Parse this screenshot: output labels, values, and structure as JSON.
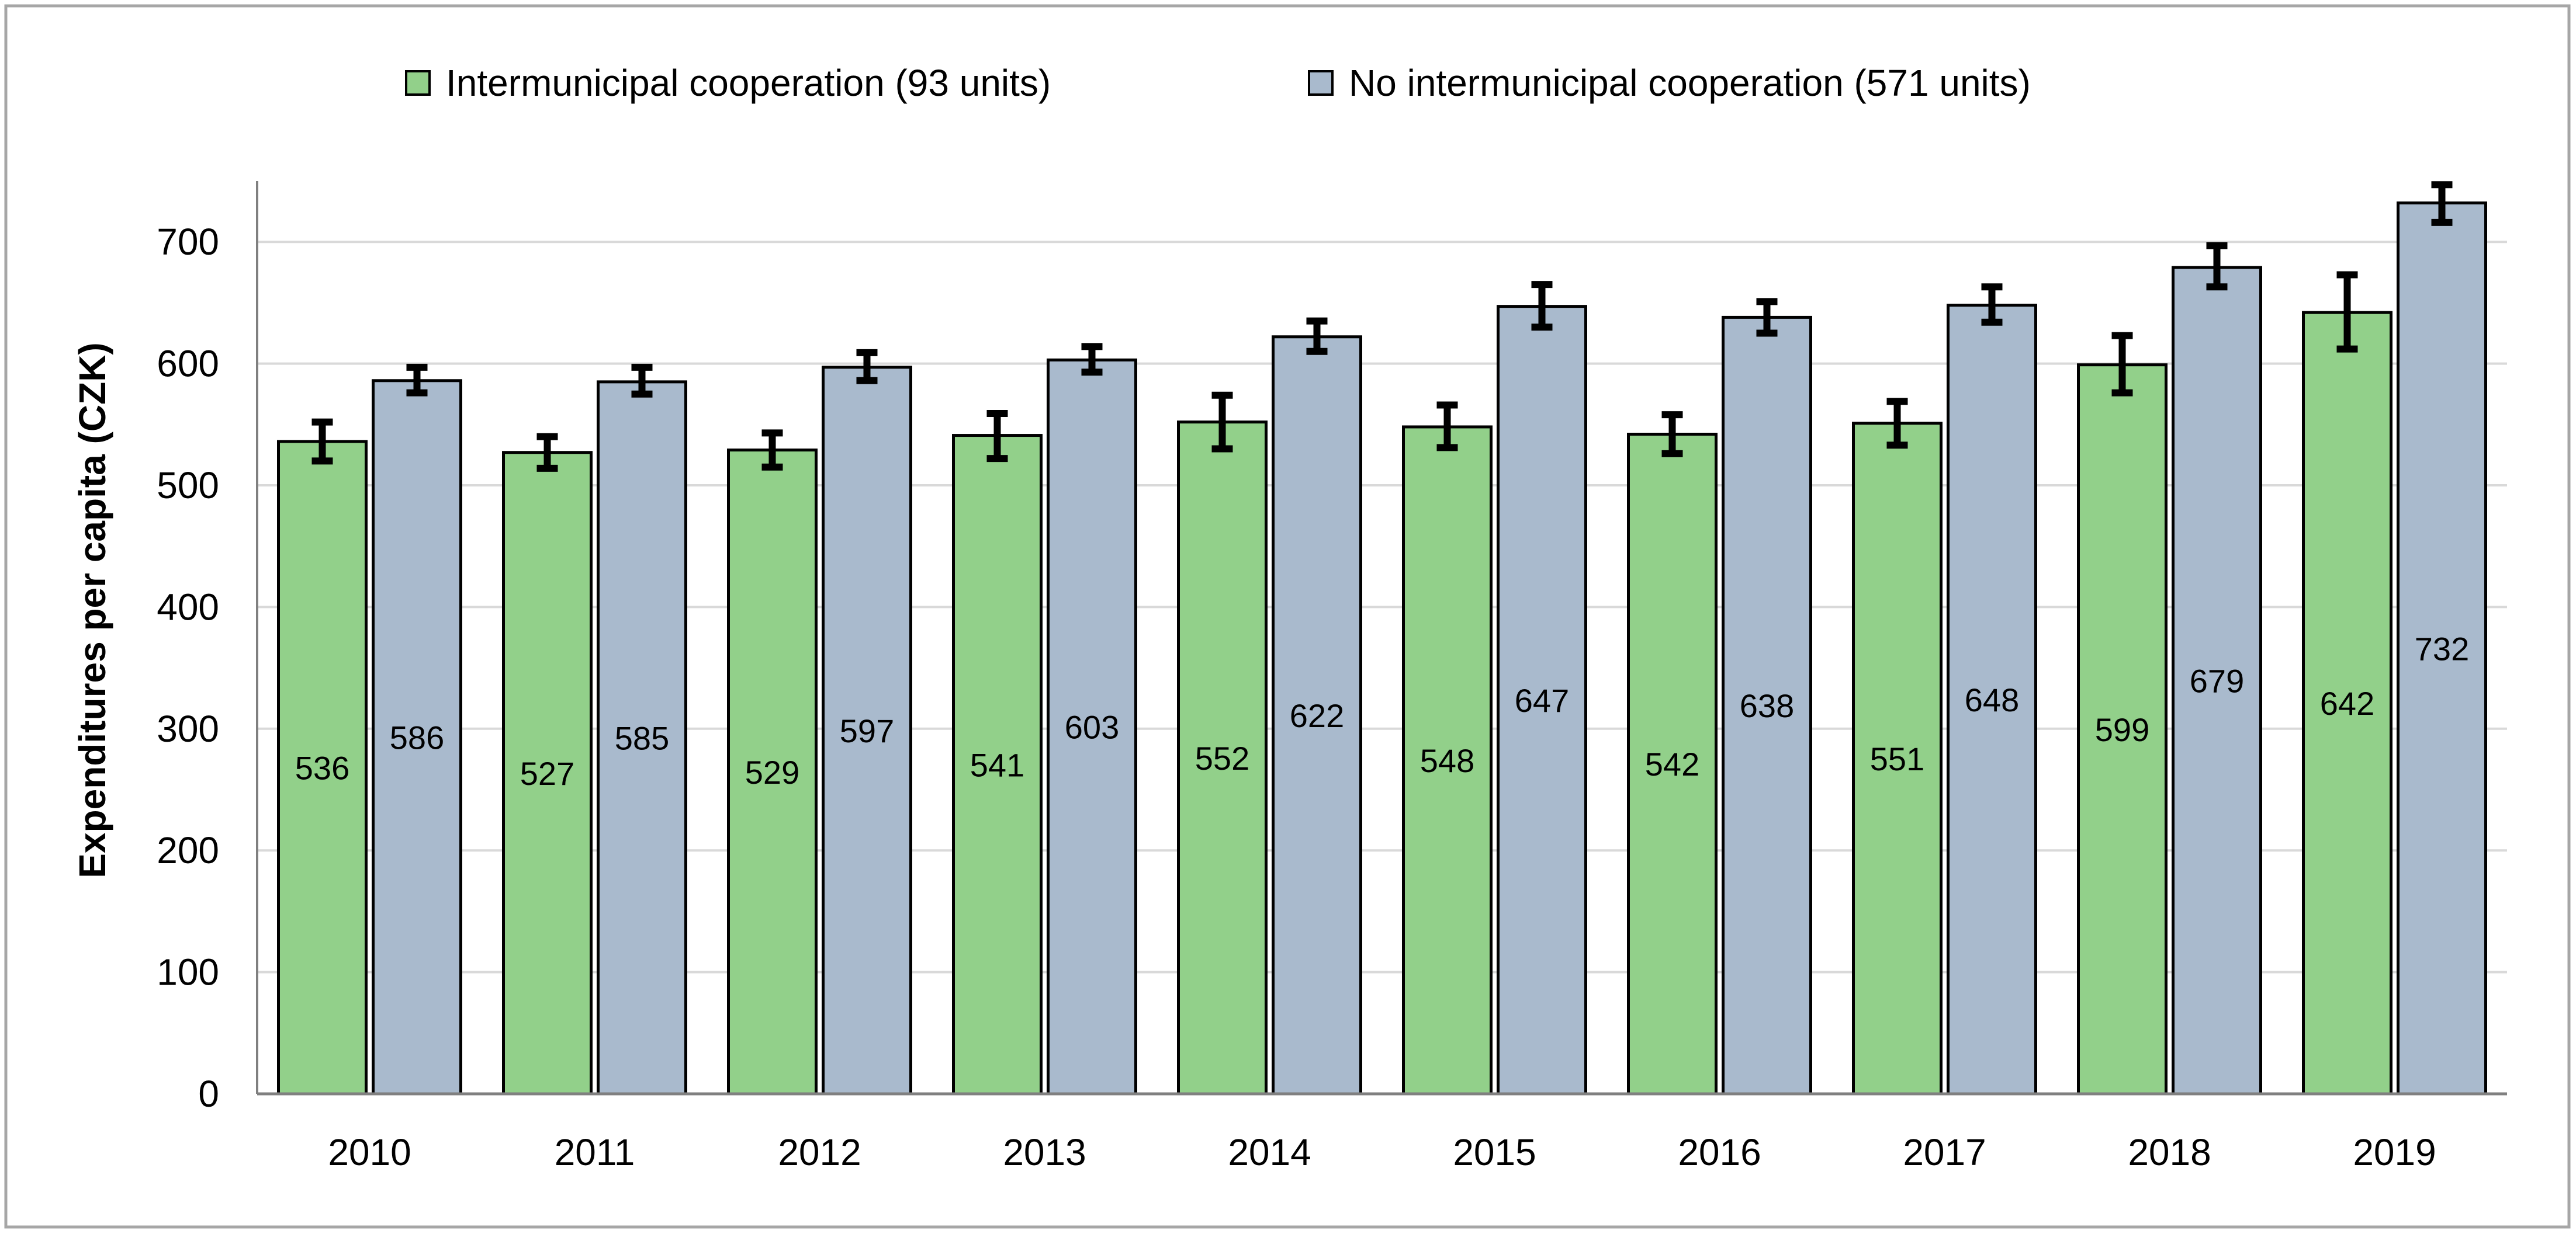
{
  "chart_data": {
    "type": "bar",
    "title": "",
    "xlabel": "",
    "ylabel": "Expenditures per capita (CZK)",
    "ylim": [
      0,
      750
    ],
    "yticks": [
      0,
      100,
      200,
      300,
      400,
      500,
      600,
      700
    ],
    "grid": true,
    "legend_position": "top",
    "categories": [
      "2010",
      "2011",
      "2012",
      "2013",
      "2014",
      "2015",
      "2016",
      "2017",
      "2018",
      "2019"
    ],
    "series": [
      {
        "name": "Intermunicipal cooperation (93 units)",
        "color": "#92D08A",
        "values": [
          536,
          527,
          529,
          541,
          552,
          548,
          542,
          551,
          599,
          642
        ],
        "error_low": [
          520,
          514,
          515,
          522,
          530,
          531,
          526,
          533,
          576,
          612
        ],
        "error_high": [
          552,
          540,
          543,
          559,
          574,
          566,
          558,
          569,
          623,
          673
        ]
      },
      {
        "name": "No intermunicipal cooperation (571 units)",
        "color": "#A9BACD",
        "values": [
          586,
          585,
          597,
          603,
          622,
          647,
          638,
          648,
          679,
          732
        ],
        "error_low": [
          576,
          575,
          586,
          593,
          610,
          630,
          625,
          634,
          663,
          716
        ],
        "error_high": [
          597,
          597,
          609,
          614,
          635,
          665,
          651,
          663,
          697,
          747
        ]
      }
    ]
  },
  "style": {
    "frame_color": "#A6A6A6",
    "grid_color": "#D9D9D9",
    "axis_color": "#808080",
    "bar_outline_color": "#000000",
    "error_bar_color": "#000000"
  }
}
